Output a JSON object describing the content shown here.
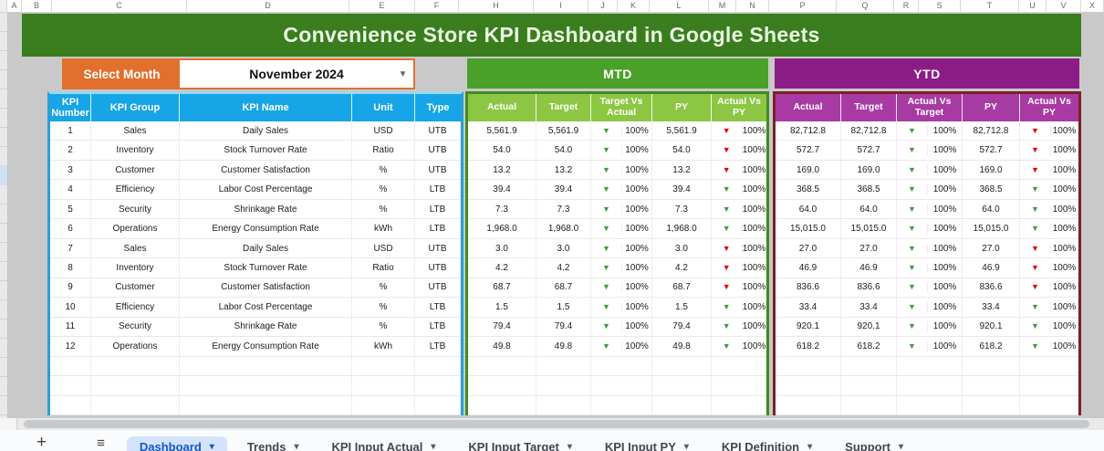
{
  "spreadsheet": {
    "column_letters": [
      "A",
      "B",
      "C",
      "D",
      "E",
      "F",
      "H",
      "I",
      "J",
      "K",
      "L",
      "M",
      "N",
      "P",
      "Q",
      "R",
      "S",
      "T",
      "U",
      "V",
      "X"
    ],
    "title": "Convenience Store KPI Dashboard in Google Sheets",
    "select_month_label": "Select Month",
    "selected_month": "November 2024",
    "dropdown_arrow": "▾"
  },
  "colors": {
    "title_banner_green": "#3a7d1f",
    "select_month_orange": "#e2702d",
    "kpi_header_blue": "#16a5e6",
    "mtd_header_green": "#4ba02a",
    "mtd_subheader_green": "#8dc642",
    "mtd_border_green": "#3f8c22",
    "ytd_header_purple": "#8c1d87",
    "ytd_subheader_purple": "#a83aa3",
    "ytd_border_maroon": "#7b2125",
    "arrow_green": "#3d9e3d",
    "arrow_red": "#e60000",
    "active_tab_blue": "#1557c4"
  },
  "kpi_table": {
    "headers": [
      "KPI Number",
      "KPI Group",
      "KPI Name",
      "Unit",
      "Type"
    ],
    "mtd": {
      "title": "MTD",
      "headers": [
        "Actual",
        "Target",
        "Target Vs Actual",
        "PY",
        "Actual Vs PY"
      ]
    },
    "ytd": {
      "title": "YTD",
      "headers": [
        "Actual",
        "Target",
        "Actual Vs Target",
        "PY",
        "Actual Vs PY"
      ]
    },
    "arrow_glyph": "▼",
    "rows": [
      {
        "number": "1",
        "group": "Sales",
        "name": "Daily Sales",
        "unit": "USD",
        "type": "UTB",
        "mtd_actual": "5,561.9",
        "mtd_target": "5,561.9",
        "mtd_tva_arrow": "green-down",
        "mtd_tva_pct": "100%",
        "mtd_py": "5,561.9",
        "mtd_avpy_arrow": "red-down",
        "mtd_avpy_pct": "100%",
        "ytd_actual": "82,712.8",
        "ytd_target": "82,712.8",
        "ytd_avt_arrow": "green-down",
        "ytd_avt_pct": "100%",
        "ytd_py": "82,712.8",
        "ytd_avpy_arrow": "red-down",
        "ytd_avpy_pct": "100%"
      },
      {
        "number": "2",
        "group": "Inventory",
        "name": "Stock Turnover Rate",
        "unit": "Ratio",
        "type": "UTB",
        "mtd_actual": "54.0",
        "mtd_target": "54.0",
        "mtd_tva_arrow": "green-down",
        "mtd_tva_pct": "100%",
        "mtd_py": "54.0",
        "mtd_avpy_arrow": "red-down",
        "mtd_avpy_pct": "100%",
        "ytd_actual": "572.7",
        "ytd_target": "572.7",
        "ytd_avt_arrow": "green-down",
        "ytd_avt_pct": "100%",
        "ytd_py": "572.7",
        "ytd_avpy_arrow": "red-down",
        "ytd_avpy_pct": "100%"
      },
      {
        "number": "3",
        "group": "Customer",
        "name": "Customer Satisfaction",
        "unit": "%",
        "type": "UTB",
        "mtd_actual": "13.2",
        "mtd_target": "13.2",
        "mtd_tva_arrow": "green-down",
        "mtd_tva_pct": "100%",
        "mtd_py": "13.2",
        "mtd_avpy_arrow": "red-down",
        "mtd_avpy_pct": "100%",
        "ytd_actual": "169.0",
        "ytd_target": "169.0",
        "ytd_avt_arrow": "green-down",
        "ytd_avt_pct": "100%",
        "ytd_py": "169.0",
        "ytd_avpy_arrow": "red-down",
        "ytd_avpy_pct": "100%"
      },
      {
        "number": "4",
        "group": "Efficiency",
        "name": "Labor Cost Percentage",
        "unit": "%",
        "type": "LTB",
        "mtd_actual": "39.4",
        "mtd_target": "39.4",
        "mtd_tva_arrow": "green-down",
        "mtd_tva_pct": "100%",
        "mtd_py": "39.4",
        "mtd_avpy_arrow": "green-down",
        "mtd_avpy_pct": "100%",
        "ytd_actual": "368.5",
        "ytd_target": "368.5",
        "ytd_avt_arrow": "green-down",
        "ytd_avt_pct": "100%",
        "ytd_py": "368.5",
        "ytd_avpy_arrow": "green-down",
        "ytd_avpy_pct": "100%"
      },
      {
        "number": "5",
        "group": "Security",
        "name": "Shrinkage Rate",
        "unit": "%",
        "type": "LTB",
        "mtd_actual": "7.3",
        "mtd_target": "7.3",
        "mtd_tva_arrow": "green-down",
        "mtd_tva_pct": "100%",
        "mtd_py": "7.3",
        "mtd_avpy_arrow": "green-down",
        "mtd_avpy_pct": "100%",
        "ytd_actual": "64.0",
        "ytd_target": "64.0",
        "ytd_avt_arrow": "green-down",
        "ytd_avt_pct": "100%",
        "ytd_py": "64.0",
        "ytd_avpy_arrow": "green-down",
        "ytd_avpy_pct": "100%"
      },
      {
        "number": "6",
        "group": "Operations",
        "name": "Energy Consumption Rate",
        "unit": "kWh",
        "type": "LTB",
        "mtd_actual": "1,968.0",
        "mtd_target": "1,968.0",
        "mtd_tva_arrow": "green-down",
        "mtd_tva_pct": "100%",
        "mtd_py": "1,968.0",
        "mtd_avpy_arrow": "green-down",
        "mtd_avpy_pct": "100%",
        "ytd_actual": "15,015.0",
        "ytd_target": "15,015.0",
        "ytd_avt_arrow": "green-down",
        "ytd_avt_pct": "100%",
        "ytd_py": "15,015.0",
        "ytd_avpy_arrow": "green-down",
        "ytd_avpy_pct": "100%"
      },
      {
        "number": "7",
        "group": "Sales",
        "name": "Daily Sales",
        "unit": "USD",
        "type": "UTB",
        "mtd_actual": "3.0",
        "mtd_target": "3.0",
        "mtd_tva_arrow": "green-down",
        "mtd_tva_pct": "100%",
        "mtd_py": "3.0",
        "mtd_avpy_arrow": "red-down",
        "mtd_avpy_pct": "100%",
        "ytd_actual": "27.0",
        "ytd_target": "27.0",
        "ytd_avt_arrow": "green-down",
        "ytd_avt_pct": "100%",
        "ytd_py": "27.0",
        "ytd_avpy_arrow": "red-down",
        "ytd_avpy_pct": "100%"
      },
      {
        "number": "8",
        "group": "Inventory",
        "name": "Stock Turnover Rate",
        "unit": "Ratio",
        "type": "UTB",
        "mtd_actual": "4.2",
        "mtd_target": "4.2",
        "mtd_tva_arrow": "green-down",
        "mtd_tva_pct": "100%",
        "mtd_py": "4.2",
        "mtd_avpy_arrow": "red-down",
        "mtd_avpy_pct": "100%",
        "ytd_actual": "46.9",
        "ytd_target": "46.9",
        "ytd_avt_arrow": "green-down",
        "ytd_avt_pct": "100%",
        "ytd_py": "46.9",
        "ytd_avpy_arrow": "red-down",
        "ytd_avpy_pct": "100%"
      },
      {
        "number": "9",
        "group": "Customer",
        "name": "Customer Satisfaction",
        "unit": "%",
        "type": "UTB",
        "mtd_actual": "68.7",
        "mtd_target": "68.7",
        "mtd_tva_arrow": "green-down",
        "mtd_tva_pct": "100%",
        "mtd_py": "68.7",
        "mtd_avpy_arrow": "red-down",
        "mtd_avpy_pct": "100%",
        "ytd_actual": "836.6",
        "ytd_target": "836.6",
        "ytd_avt_arrow": "green-down",
        "ytd_avt_pct": "100%",
        "ytd_py": "836.6",
        "ytd_avpy_arrow": "red-down",
        "ytd_avpy_pct": "100%"
      },
      {
        "number": "10",
        "group": "Efficiency",
        "name": "Labor Cost Percentage",
        "unit": "%",
        "type": "LTB",
        "mtd_actual": "1.5",
        "mtd_target": "1.5",
        "mtd_tva_arrow": "green-down",
        "mtd_tva_pct": "100%",
        "mtd_py": "1.5",
        "mtd_avpy_arrow": "green-down",
        "mtd_avpy_pct": "100%",
        "ytd_actual": "33.4",
        "ytd_target": "33.4",
        "ytd_avt_arrow": "green-down",
        "ytd_avt_pct": "100%",
        "ytd_py": "33.4",
        "ytd_avpy_arrow": "green-down",
        "ytd_avpy_pct": "100%"
      },
      {
        "number": "11",
        "group": "Security",
        "name": "Shrinkage Rate",
        "unit": "%",
        "type": "LTB",
        "mtd_actual": "79.4",
        "mtd_target": "79.4",
        "mtd_tva_arrow": "green-down",
        "mtd_tva_pct": "100%",
        "mtd_py": "79.4",
        "mtd_avpy_arrow": "green-down",
        "mtd_avpy_pct": "100%",
        "ytd_actual": "920.1",
        "ytd_target": "920.1",
        "ytd_avt_arrow": "green-down",
        "ytd_avt_pct": "100%",
        "ytd_py": "920.1",
        "ytd_avpy_arrow": "green-down",
        "ytd_avpy_pct": "100%"
      },
      {
        "number": "12",
        "group": "Operations",
        "name": "Energy Consumption Rate",
        "unit": "kWh",
        "type": "LTB",
        "mtd_actual": "49.8",
        "mtd_target": "49.8",
        "mtd_tva_arrow": "green-down",
        "mtd_tva_pct": "100%",
        "mtd_py": "49.8",
        "mtd_avpy_arrow": "green-down",
        "mtd_avpy_pct": "100%",
        "ytd_actual": "618.2",
        "ytd_target": "618.2",
        "ytd_avt_arrow": "green-down",
        "ytd_avt_pct": "100%",
        "ytd_py": "618.2",
        "ytd_avpy_arrow": "green-down",
        "ytd_avpy_pct": "100%"
      }
    ],
    "empty_row_count": 3
  },
  "tabbar": {
    "add_icon": "+",
    "all_sheets_icon": "≡",
    "caret": "▾",
    "items": [
      {
        "label": "Dashboard",
        "active": true
      },
      {
        "label": "Trends",
        "active": false
      },
      {
        "label": "KPI Input  Actual",
        "active": false
      },
      {
        "label": "KPI Input  Target",
        "active": false
      },
      {
        "label": "KPI Input  PY",
        "active": false
      },
      {
        "label": "KPI Definition",
        "active": false
      },
      {
        "label": "Support",
        "active": false
      }
    ]
  }
}
